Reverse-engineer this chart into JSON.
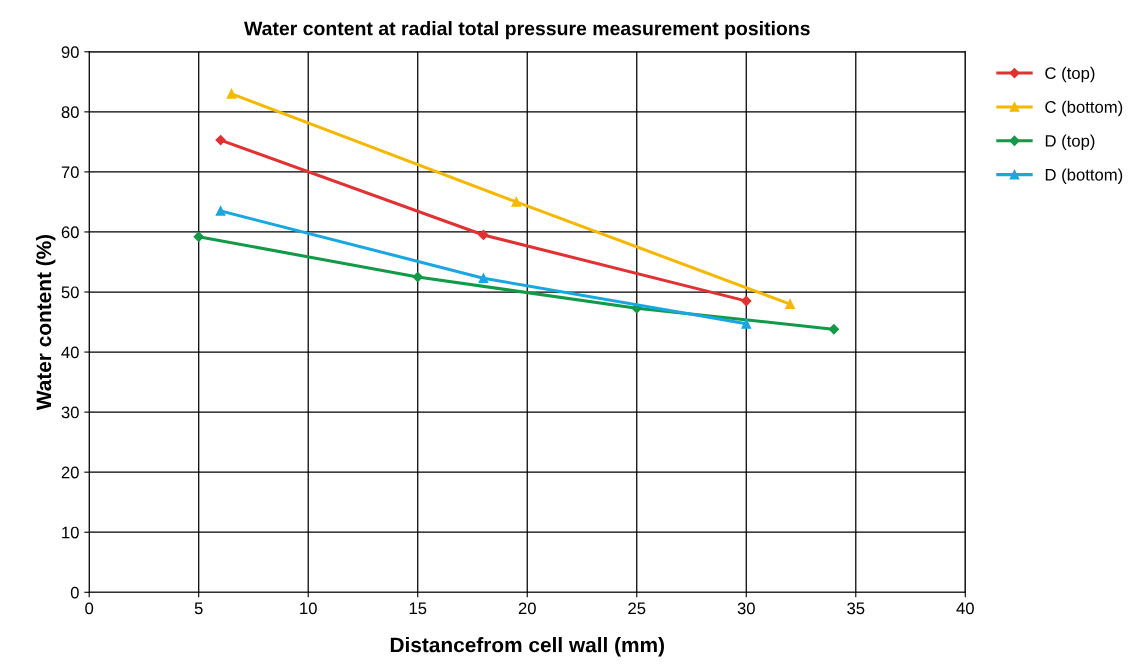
{
  "chart_data": {
    "type": "line",
    "title": "Water content at radial total pressure measurement positions",
    "xlabel": "Distancefrom cell wall (mm)",
    "ylabel": "Water content (%)",
    "xlim": [
      0,
      40
    ],
    "xticks": [
      0,
      5,
      10,
      15,
      20,
      25,
      30,
      35,
      40
    ],
    "ylim": [
      0,
      90
    ],
    "yticks": [
      0,
      10,
      20,
      30,
      40,
      50,
      60,
      70,
      80,
      90
    ],
    "grid": true,
    "legend": "right",
    "line_style": "solid",
    "series": [
      {
        "name": "C (top)",
        "color": "#e03232",
        "marker": "diamond",
        "x": [
          6,
          18,
          30
        ],
        "values": [
          75.3,
          59.5,
          48.5
        ]
      },
      {
        "name": "C (bottom)",
        "color": "#f5b800",
        "marker": "triangle",
        "x": [
          6.5,
          19.5,
          32
        ],
        "values": [
          83,
          65,
          48
        ]
      },
      {
        "name": "D (top)",
        "color": "#119a48",
        "marker": "diamond",
        "x": [
          5,
          15,
          25,
          34
        ],
        "values": [
          59.2,
          52.5,
          47.3,
          43.8
        ]
      },
      {
        "name": "D (bottom)",
        "color": "#1aa7e0",
        "marker": "triangle",
        "x": [
          6,
          18,
          30
        ],
        "values": [
          63.5,
          52.3,
          44.7
        ]
      }
    ]
  }
}
